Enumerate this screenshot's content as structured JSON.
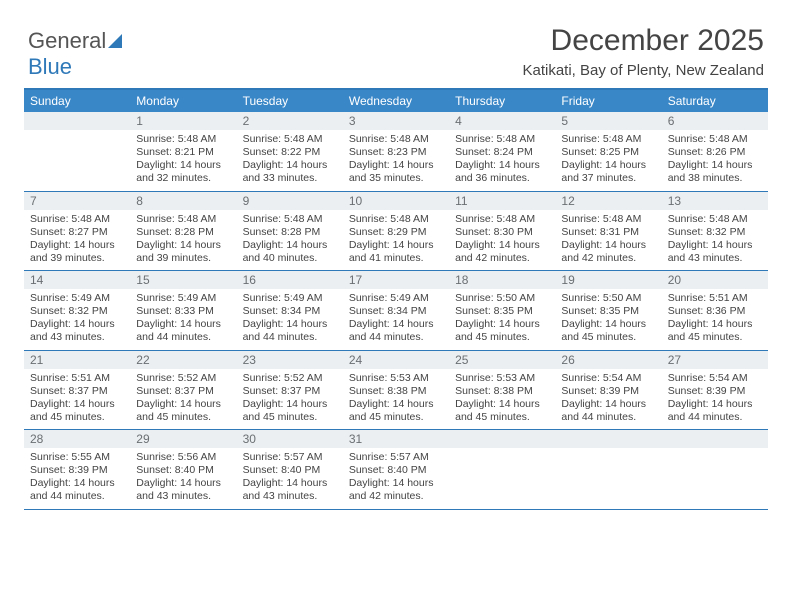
{
  "brand": {
    "word1": "General",
    "word2": "Blue",
    "brand_color": "#2f79b9"
  },
  "title": "December 2025",
  "subtitle": "Katikati, Bay of Plenty, New Zealand",
  "colors": {
    "header_bg": "#3a87c7",
    "header_text": "#ffffff",
    "border": "#2f79b9",
    "daynum_bg": "#eceff1",
    "daynum_text": "#6a6f73",
    "body_text": "#444444",
    "page_bg": "#ffffff"
  },
  "fontsize": {
    "title": 30,
    "subtitle": 15,
    "dow": 12,
    "daynum": 12,
    "body": 10.5
  },
  "days_of_week": [
    "Sunday",
    "Monday",
    "Tuesday",
    "Wednesday",
    "Thursday",
    "Friday",
    "Saturday"
  ],
  "weeks": [
    [
      {
        "n": "",
        "sunrise": "",
        "sunset": "",
        "daylight": ""
      },
      {
        "n": "1",
        "sunrise": "5:48 AM",
        "sunset": "8:21 PM",
        "daylight": "14 hours and 32 minutes."
      },
      {
        "n": "2",
        "sunrise": "5:48 AM",
        "sunset": "8:22 PM",
        "daylight": "14 hours and 33 minutes."
      },
      {
        "n": "3",
        "sunrise": "5:48 AM",
        "sunset": "8:23 PM",
        "daylight": "14 hours and 35 minutes."
      },
      {
        "n": "4",
        "sunrise": "5:48 AM",
        "sunset": "8:24 PM",
        "daylight": "14 hours and 36 minutes."
      },
      {
        "n": "5",
        "sunrise": "5:48 AM",
        "sunset": "8:25 PM",
        "daylight": "14 hours and 37 minutes."
      },
      {
        "n": "6",
        "sunrise": "5:48 AM",
        "sunset": "8:26 PM",
        "daylight": "14 hours and 38 minutes."
      }
    ],
    [
      {
        "n": "7",
        "sunrise": "5:48 AM",
        "sunset": "8:27 PM",
        "daylight": "14 hours and 39 minutes."
      },
      {
        "n": "8",
        "sunrise": "5:48 AM",
        "sunset": "8:28 PM",
        "daylight": "14 hours and 39 minutes."
      },
      {
        "n": "9",
        "sunrise": "5:48 AM",
        "sunset": "8:28 PM",
        "daylight": "14 hours and 40 minutes."
      },
      {
        "n": "10",
        "sunrise": "5:48 AM",
        "sunset": "8:29 PM",
        "daylight": "14 hours and 41 minutes."
      },
      {
        "n": "11",
        "sunrise": "5:48 AM",
        "sunset": "8:30 PM",
        "daylight": "14 hours and 42 minutes."
      },
      {
        "n": "12",
        "sunrise": "5:48 AM",
        "sunset": "8:31 PM",
        "daylight": "14 hours and 42 minutes."
      },
      {
        "n": "13",
        "sunrise": "5:48 AM",
        "sunset": "8:32 PM",
        "daylight": "14 hours and 43 minutes."
      }
    ],
    [
      {
        "n": "14",
        "sunrise": "5:49 AM",
        "sunset": "8:32 PM",
        "daylight": "14 hours and 43 minutes."
      },
      {
        "n": "15",
        "sunrise": "5:49 AM",
        "sunset": "8:33 PM",
        "daylight": "14 hours and 44 minutes."
      },
      {
        "n": "16",
        "sunrise": "5:49 AM",
        "sunset": "8:34 PM",
        "daylight": "14 hours and 44 minutes."
      },
      {
        "n": "17",
        "sunrise": "5:49 AM",
        "sunset": "8:34 PM",
        "daylight": "14 hours and 44 minutes."
      },
      {
        "n": "18",
        "sunrise": "5:50 AM",
        "sunset": "8:35 PM",
        "daylight": "14 hours and 45 minutes."
      },
      {
        "n": "19",
        "sunrise": "5:50 AM",
        "sunset": "8:35 PM",
        "daylight": "14 hours and 45 minutes."
      },
      {
        "n": "20",
        "sunrise": "5:51 AM",
        "sunset": "8:36 PM",
        "daylight": "14 hours and 45 minutes."
      }
    ],
    [
      {
        "n": "21",
        "sunrise": "5:51 AM",
        "sunset": "8:37 PM",
        "daylight": "14 hours and 45 minutes."
      },
      {
        "n": "22",
        "sunrise": "5:52 AM",
        "sunset": "8:37 PM",
        "daylight": "14 hours and 45 minutes."
      },
      {
        "n": "23",
        "sunrise": "5:52 AM",
        "sunset": "8:37 PM",
        "daylight": "14 hours and 45 minutes."
      },
      {
        "n": "24",
        "sunrise": "5:53 AM",
        "sunset": "8:38 PM",
        "daylight": "14 hours and 45 minutes."
      },
      {
        "n": "25",
        "sunrise": "5:53 AM",
        "sunset": "8:38 PM",
        "daylight": "14 hours and 45 minutes."
      },
      {
        "n": "26",
        "sunrise": "5:54 AM",
        "sunset": "8:39 PM",
        "daylight": "14 hours and 44 minutes."
      },
      {
        "n": "27",
        "sunrise": "5:54 AM",
        "sunset": "8:39 PM",
        "daylight": "14 hours and 44 minutes."
      }
    ],
    [
      {
        "n": "28",
        "sunrise": "5:55 AM",
        "sunset": "8:39 PM",
        "daylight": "14 hours and 44 minutes."
      },
      {
        "n": "29",
        "sunrise": "5:56 AM",
        "sunset": "8:40 PM",
        "daylight": "14 hours and 43 minutes."
      },
      {
        "n": "30",
        "sunrise": "5:57 AM",
        "sunset": "8:40 PM",
        "daylight": "14 hours and 43 minutes."
      },
      {
        "n": "31",
        "sunrise": "5:57 AM",
        "sunset": "8:40 PM",
        "daylight": "14 hours and 42 minutes."
      },
      {
        "n": "",
        "sunrise": "",
        "sunset": "",
        "daylight": ""
      },
      {
        "n": "",
        "sunrise": "",
        "sunset": "",
        "daylight": ""
      },
      {
        "n": "",
        "sunrise": "",
        "sunset": "",
        "daylight": ""
      }
    ]
  ],
  "labels": {
    "sunrise": "Sunrise:",
    "sunset": "Sunset:",
    "daylight": "Daylight:"
  }
}
